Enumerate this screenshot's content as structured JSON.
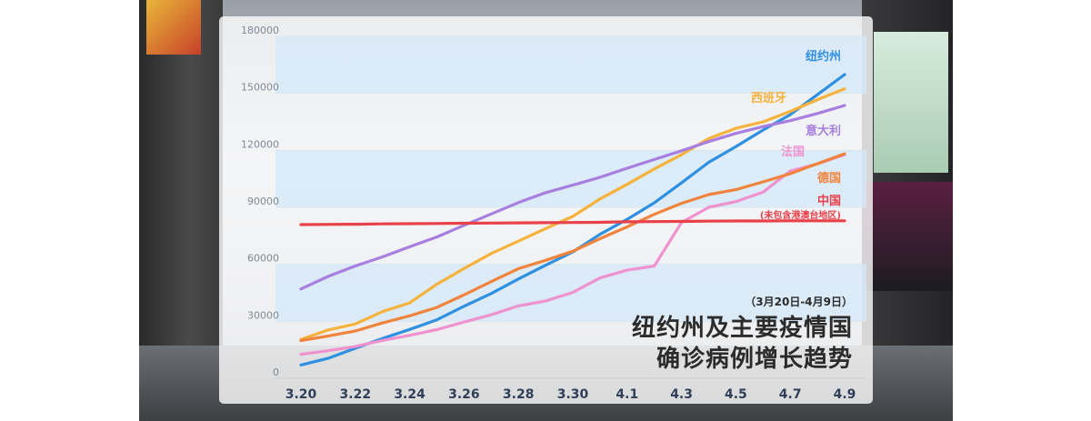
{
  "chart_data": {
    "type": "line",
    "title_lines": [
      "纽约州及主要疫情国",
      "确诊病例增长趋势"
    ],
    "date_range": "（3月20日-4月9日）",
    "xlabel": "",
    "ylabel": "",
    "ylim": [
      0,
      180000
    ],
    "y_ticks": [
      "0",
      "30000",
      "60000",
      "90000",
      "120000",
      "150000",
      "180000"
    ],
    "x_tick_labels": [
      "3.20",
      "3.22",
      "3.24",
      "3.26",
      "3.28",
      "3.30",
      "4.1",
      "4.3",
      "4.5",
      "4.7",
      "4.9"
    ],
    "x_count": 21,
    "grid": true,
    "series": [
      {
        "name": "纽约州",
        "color": "#2f8fe0",
        "values": [
          7000,
          10500,
          15800,
          20900,
          25700,
          30800,
          37900,
          44600,
          52300,
          59500,
          66500,
          75800,
          83700,
          92400,
          102900,
          113700,
          122000,
          130700,
          138800,
          149300,
          159900
        ]
      },
      {
        "name": "西班牙",
        "color": "#f5b23c",
        "values": [
          20400,
          25400,
          28600,
          35100,
          39700,
          49500,
          57800,
          65700,
          72200,
          78800,
          85200,
          94400,
          102100,
          110200,
          117700,
          126200,
          131600,
          135000,
          140500,
          146700,
          152400
        ]
      },
      {
        "name": "意大利",
        "color": "#a77fe0",
        "values": [
          47000,
          53600,
          59100,
          63900,
          69200,
          74400,
          80500,
          86500,
          92500,
          97700,
          101700,
          105800,
          110600,
          115200,
          119800,
          124600,
          128900,
          132500,
          135600,
          139400,
          143600
        ]
      },
      {
        "name": "法国",
        "color": "#ee92d0",
        "values": [
          12600,
          14500,
          16700,
          19900,
          22600,
          25600,
          29600,
          33400,
          38100,
          40700,
          45200,
          52800,
          56900,
          59100,
          82000,
          90000,
          93000,
          98000,
          109100,
          112900,
          117700
        ]
      },
      {
        "name": "德国",
        "color": "#f0843c",
        "values": [
          19800,
          22200,
          24900,
          29100,
          32900,
          37300,
          43900,
          50900,
          57700,
          62100,
          66900,
          73500,
          79700,
          86300,
          92100,
          96700,
          99300,
          103400,
          107700,
          113000,
          118200
        ]
      },
      {
        "name": "中国",
        "subtitle": "(未包含港澳台地区)",
        "color": "#e8414a",
        "values": [
          80900,
          81000,
          81100,
          81300,
          81400,
          81500,
          81600,
          81700,
          81800,
          81900,
          82000,
          82100,
          82400,
          82500,
          82600,
          82700,
          82800,
          82800,
          82900,
          82900,
          82900
        ]
      }
    ]
  }
}
